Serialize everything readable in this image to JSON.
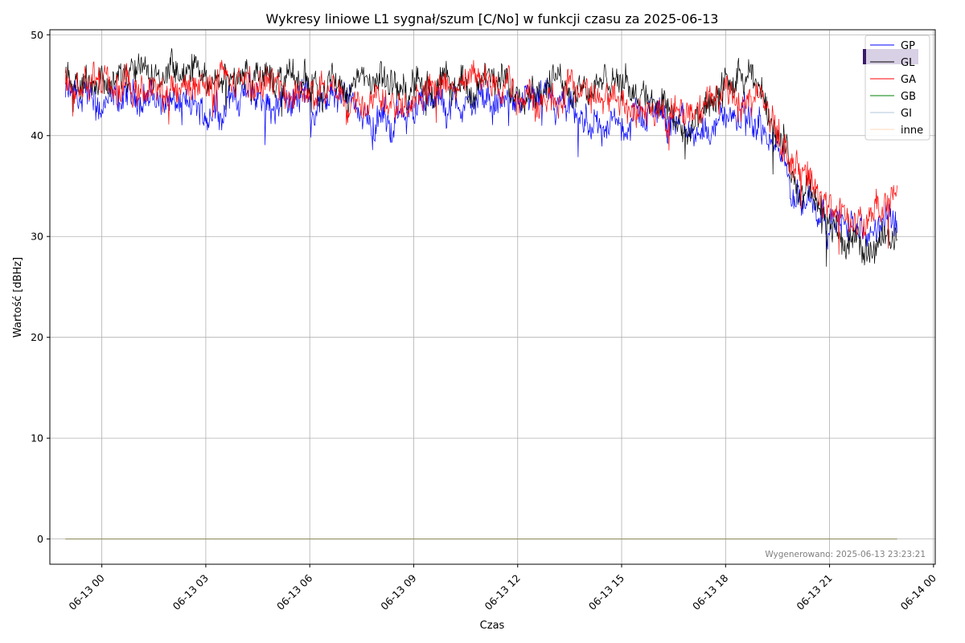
{
  "chart_data": {
    "type": "line",
    "title": "Wykresy liniowe L1 sygnał/szum [C/No] w funkcji czasu za 2025-06-13",
    "xlabel": "Czas",
    "ylabel": "Wartość [dBHz]",
    "xlim_hours_from_0613_00": [
      -1.5,
      24.05
    ],
    "ylim": [
      -2.5,
      50.5
    ],
    "x_ticks": [
      {
        "hour": 0,
        "label": "06-13 00"
      },
      {
        "hour": 3,
        "label": "06-13 03"
      },
      {
        "hour": 6,
        "label": "06-13 06"
      },
      {
        "hour": 9,
        "label": "06-13 09"
      },
      {
        "hour": 12,
        "label": "06-13 12"
      },
      {
        "hour": 15,
        "label": "06-13 15"
      },
      {
        "hour": 18,
        "label": "06-13 18"
      },
      {
        "hour": 21,
        "label": "06-13 21"
      },
      {
        "hour": 24,
        "label": "06-14 00"
      }
    ],
    "y_ticks": [
      0,
      10,
      20,
      30,
      40,
      50
    ],
    "grid": true,
    "legend_position": "top-right",
    "x_hours_approx": [
      -1,
      0,
      1,
      2,
      3,
      4,
      5,
      6,
      7,
      8,
      9,
      10,
      11,
      12,
      13,
      14,
      15,
      16,
      17,
      18,
      19,
      20,
      21,
      22,
      23
    ],
    "series": [
      {
        "name": "GP",
        "color": "#0000ff",
        "values": [
          44,
          42.5,
          44,
          43.5,
          42,
          44,
          43.5,
          44,
          43,
          41,
          43,
          43,
          43,
          43.5,
          43,
          41,
          41,
          43,
          40,
          42,
          41,
          35,
          32,
          30,
          32
        ]
      },
      {
        "name": "GL",
        "color": "#000000",
        "values": [
          46,
          45.5,
          46,
          46,
          46,
          46,
          45.5,
          45.5,
          45,
          45,
          45,
          45,
          45,
          45,
          45,
          45,
          45,
          44,
          40,
          45,
          45,
          36,
          31,
          28,
          31
        ]
      },
      {
        "name": "GA",
        "color": "#ff0000",
        "values": [
          45,
          45,
          44,
          44.5,
          45,
          45,
          45,
          44,
          44,
          44,
          44,
          45,
          45.5,
          44,
          44,
          44.5,
          43.5,
          42,
          42,
          44,
          44,
          37,
          33,
          31,
          34
        ]
      },
      {
        "name": "GB",
        "color": "#008000",
        "values": [
          0,
          0,
          0,
          0,
          0,
          0,
          0,
          0,
          0,
          0,
          0,
          0,
          0,
          0,
          0,
          0,
          0,
          0,
          0,
          0,
          0,
          0,
          0,
          0,
          0
        ]
      },
      {
        "name": "GI",
        "color": "#b0c4de",
        "values": [
          0,
          0,
          0,
          0,
          0,
          0,
          0,
          0,
          0,
          0,
          0,
          0,
          0,
          0,
          0,
          0,
          0,
          0,
          0,
          0,
          0,
          0,
          0,
          0,
          0
        ]
      },
      {
        "name": "inne",
        "color": "#ffdab9",
        "values": [
          0,
          0,
          0,
          0,
          0,
          0,
          0,
          0,
          0,
          0,
          0,
          0,
          0,
          0,
          0,
          0,
          0,
          0,
          0,
          0,
          0,
          0,
          0,
          0,
          0
        ]
      }
    ],
    "annotation": "Wygenerowano: 2025-06-13 23:23:21"
  }
}
